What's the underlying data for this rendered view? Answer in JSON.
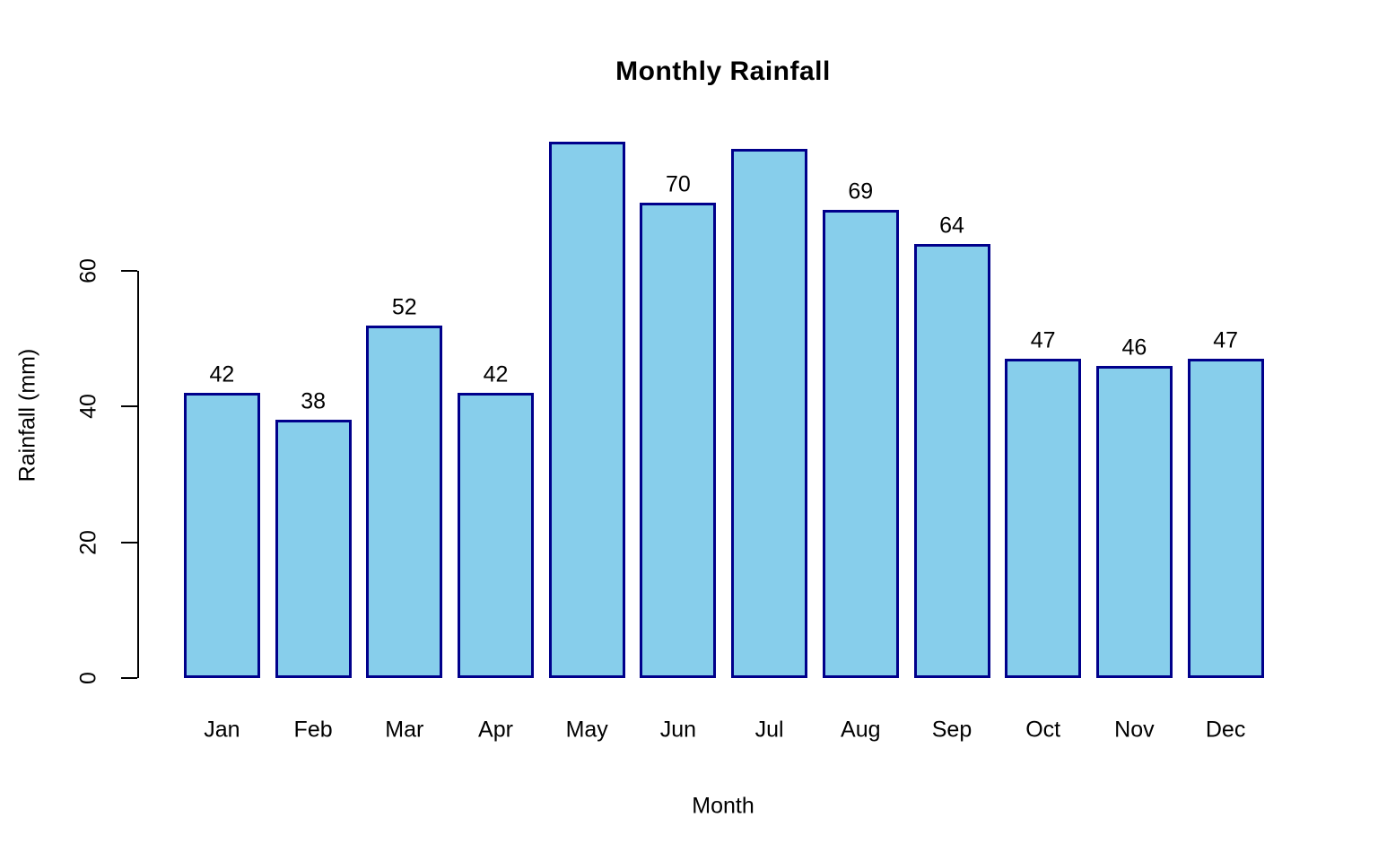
{
  "chart_data": {
    "type": "bar",
    "title": "Monthly Rainfall",
    "xlabel": "Month",
    "ylabel": "Rainfall (mm)",
    "categories": [
      "Jan",
      "Feb",
      "Mar",
      "Apr",
      "May",
      "Jun",
      "Jul",
      "Aug",
      "Sep",
      "Oct",
      "Nov",
      "Dec"
    ],
    "values": [
      42,
      38,
      52,
      42,
      79,
      70,
      78,
      69,
      64,
      47,
      46,
      47
    ],
    "value_labels": [
      "42",
      "38",
      "52",
      "42",
      "",
      "70",
      "",
      "69",
      "64",
      "47",
      "46",
      "47"
    ],
    "ytick_labels": [
      "0",
      "20",
      "40",
      "60"
    ],
    "ytick_values": [
      0,
      20,
      40,
      60
    ],
    "ylim": [
      0,
      80
    ],
    "grid": false,
    "legend_position": "none",
    "colors": {
      "bar_fill": "#87CEEB",
      "bar_border": "#00008B",
      "axis": "#000000",
      "text": "#000000",
      "background": "#FFFFFF"
    }
  }
}
